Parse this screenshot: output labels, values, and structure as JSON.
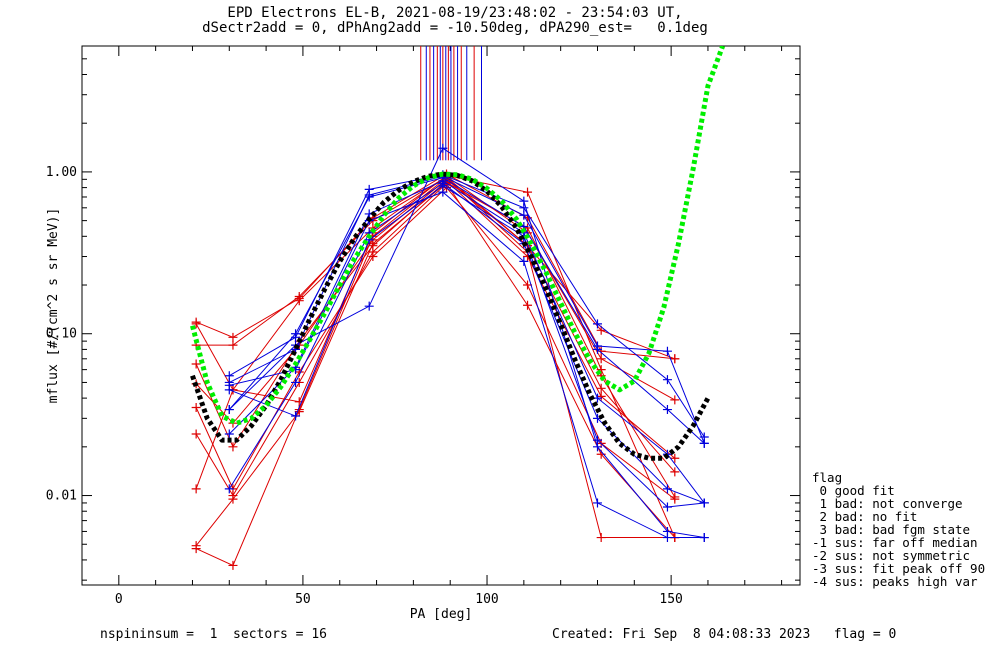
{
  "title": {
    "line1": "EPD Electrons EL-B, 2021-08-19/23:48:02 - 23:54:03 UT,",
    "line2": "dSectr2add = 0, dPhAng2add = -10.50deg, dPA290_est=   0.1deg"
  },
  "footer": {
    "left": "nspininsum =  1  sectors = 16",
    "right": "Created: Fri Sep  8 04:08:33 2023   flag = 0"
  },
  "legend": {
    "title": "flag",
    "items": [
      " 0 good fit",
      " 1 bad: not converge",
      " 2 bad: no fit",
      " 3 bad: bad fgm state",
      "-1 sus: far off median",
      "-2 sus: not symmetric",
      "-3 sus: fit peak off 90",
      "-4 sus: peaks high var"
    ]
  },
  "colors": {
    "red": "#dd0000",
    "blue": "#0000dd",
    "green": "#00ee00",
    "black": "#000000"
  },
  "chart_data": {
    "type": "line",
    "xlabel": "PA [deg]",
    "ylabel": "mflux [#/(cm^2 s sr MeV)]",
    "xlim": [
      -10,
      185
    ],
    "ylim": [
      0.0028,
      6
    ],
    "ylog": true,
    "xticks": [
      {
        "value": 0,
        "label": "0"
      },
      {
        "value": 50,
        "label": "50"
      },
      {
        "value": 100,
        "label": "100"
      },
      {
        "value": 150,
        "label": "150"
      }
    ],
    "yticks": [
      {
        "value": 0.01,
        "label": "0.01"
      },
      {
        "value": 0.1,
        "label": "0.10"
      },
      {
        "value": 1,
        "label": "1.00"
      }
    ],
    "red_x": [
      21,
      31,
      49,
      69,
      89,
      111,
      131,
      151
    ],
    "blue_x": [
      30,
      48,
      68,
      88,
      110,
      130,
      149,
      159
    ],
    "red_series": [
      [
        0.118,
        0.095,
        0.165,
        0.52,
        0.97,
        0.52,
        0.078,
        0.07
      ],
      [
        0.115,
        0.045,
        0.16,
        0.45,
        0.94,
        0.42,
        0.07,
        0.039
      ],
      [
        0.065,
        0.02,
        0.09,
        0.35,
        0.88,
        0.3,
        0.041,
        0.017
      ],
      [
        0.049,
        0.028,
        0.085,
        0.38,
        0.9,
        0.35,
        0.046,
        0.014
      ],
      [
        0.035,
        0.011,
        0.058,
        0.3,
        0.8,
        0.2,
        0.021,
        0.0095
      ],
      [
        0.024,
        0.01,
        0.05,
        0.32,
        0.85,
        0.15,
        0.018,
        0.0055
      ],
      [
        0.011,
        0.045,
        0.038,
        0.42,
        0.95,
        0.75,
        0.06,
        0.0055
      ],
      [
        0.0047,
        0.0037,
        0.034,
        0.4,
        0.92,
        0.32,
        0.0055,
        0.0055
      ],
      [
        0.0049,
        0.0095,
        0.033,
        0.36,
        0.86,
        0.45,
        0.055,
        0.0098
      ],
      [
        0.085,
        0.085,
        0.17,
        0.5,
        0.93,
        0.35,
        0.105,
        0.07
      ]
    ],
    "blue_series": [
      [
        0.055,
        0.095,
        0.78,
        0.96,
        0.6,
        0.115,
        0.052,
        0.023
      ],
      [
        0.05,
        0.08,
        0.72,
        0.94,
        0.54,
        0.084,
        0.078,
        0.021
      ],
      [
        0.034,
        0.1,
        0.7,
        0.92,
        0.46,
        0.08,
        0.034,
        0.021
      ],
      [
        0.024,
        0.062,
        0.55,
        0.88,
        0.42,
        0.04,
        0.018,
        0.009
      ],
      [
        0.011,
        0.05,
        0.42,
        0.85,
        0.36,
        0.03,
        0.011,
        0.009
      ],
      [
        0.045,
        0.031,
        0.38,
        0.82,
        0.4,
        0.022,
        0.0085,
        0.009
      ],
      [
        0.034,
        0.085,
        0.148,
        1.4,
        0.66,
        0.02,
        0.006,
        0.0055
      ],
      [
        0.048,
        0.06,
        0.5,
        0.75,
        0.28,
        0.009,
        0.0055,
        0.0055
      ]
    ],
    "median_fit": {
      "color": "black",
      "style": "dotted",
      "x": [
        20,
        24,
        28,
        32,
        36,
        40,
        44,
        48,
        52,
        56,
        60,
        64,
        68,
        72,
        76,
        80,
        84,
        88,
        92,
        96,
        100,
        104,
        108,
        112,
        116,
        120,
        124,
        128,
        132,
        136,
        140,
        144,
        148,
        152,
        156,
        160
      ],
      "y": [
        0.055,
        0.03,
        0.022,
        0.022,
        0.027,
        0.036,
        0.052,
        0.08,
        0.125,
        0.19,
        0.28,
        0.39,
        0.51,
        0.65,
        0.77,
        0.87,
        0.94,
        0.97,
        0.95,
        0.88,
        0.76,
        0.61,
        0.45,
        0.3,
        0.19,
        0.115,
        0.068,
        0.042,
        0.028,
        0.021,
        0.018,
        0.017,
        0.017,
        0.02,
        0.027,
        0.04
      ]
    },
    "fit_curve": {
      "color": "green",
      "style": "dotted",
      "x": [
        20,
        24,
        28,
        32,
        36,
        40,
        44,
        48,
        52,
        56,
        60,
        64,
        68,
        72,
        76,
        80,
        84,
        88,
        92,
        96,
        100,
        104,
        108,
        112,
        116,
        120,
        124,
        128,
        132,
        136,
        140,
        144,
        148,
        152,
        156,
        160,
        164
      ],
      "y": [
        0.112,
        0.05,
        0.031,
        0.028,
        0.03,
        0.036,
        0.047,
        0.065,
        0.093,
        0.135,
        0.2,
        0.29,
        0.4,
        0.54,
        0.69,
        0.82,
        0.92,
        0.97,
        0.96,
        0.9,
        0.79,
        0.66,
        0.51,
        0.36,
        0.24,
        0.155,
        0.1,
        0.068,
        0.051,
        0.045,
        0.051,
        0.076,
        0.145,
        0.36,
        1.05,
        3.4,
        6.0
      ]
    },
    "peak_markers": [
      {
        "x": 82,
        "color": "red"
      },
      {
        "x": 83.5,
        "color": "blue"
      },
      {
        "x": 84.5,
        "color": "red"
      },
      {
        "x": 85.5,
        "color": "blue"
      },
      {
        "x": 86.5,
        "color": "red"
      },
      {
        "x": 87.3,
        "color": "blue"
      },
      {
        "x": 88,
        "color": "red"
      },
      {
        "x": 88.8,
        "color": "blue"
      },
      {
        "x": 89.5,
        "color": "red"
      },
      {
        "x": 90.2,
        "color": "blue"
      },
      {
        "x": 91,
        "color": "red"
      },
      {
        "x": 92,
        "color": "blue"
      },
      {
        "x": 93,
        "color": "red"
      },
      {
        "x": 94.5,
        "color": "blue"
      },
      {
        "x": 96.5,
        "color": "red"
      },
      {
        "x": 98.5,
        "color": "blue"
      }
    ]
  }
}
